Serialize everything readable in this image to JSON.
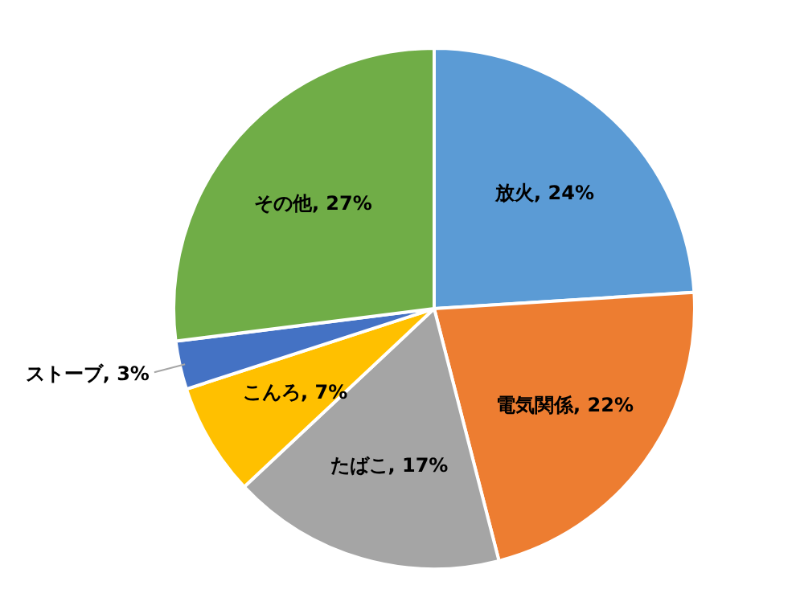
{
  "chart_data": {
    "type": "pie",
    "categories": [
      "放火",
      "電気関係",
      "たばこ",
      "こんろ",
      "ストーブ",
      "その他"
    ],
    "values": [
      24,
      22,
      17,
      7,
      3,
      27
    ],
    "value_labels": [
      "24%",
      "22%",
      "17%",
      "7%",
      "3%",
      "27%"
    ],
    "colors": [
      "#5b9bd5",
      "#ed7d31",
      "#a5a5a5",
      "#ffc000",
      "#4472c4",
      "#70ad47"
    ]
  }
}
